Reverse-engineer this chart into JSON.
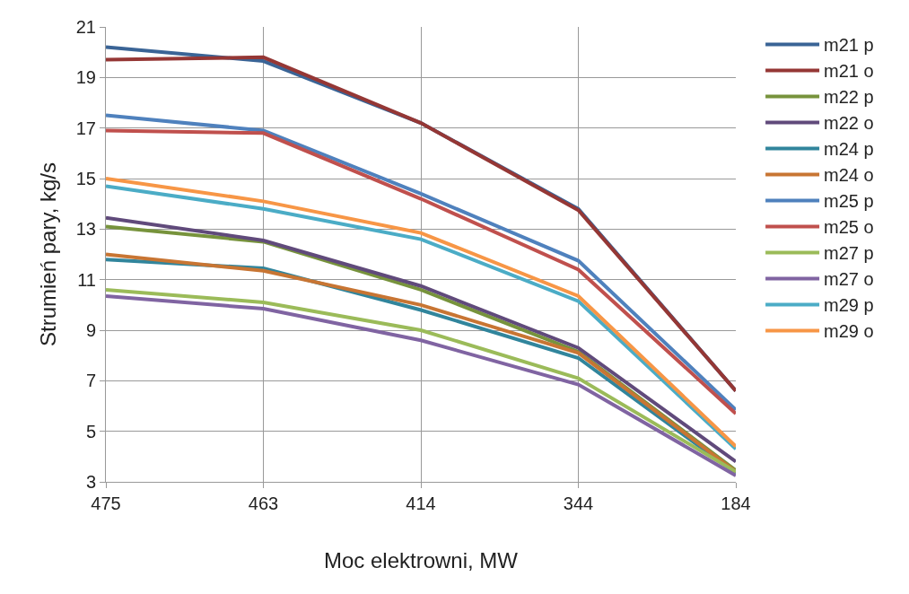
{
  "chart_data": {
    "type": "line",
    "xlabel": "Moc elektrowni, MW",
    "ylabel": "Strumień pary, kg/s",
    "categories": [
      "475",
      "463",
      "414",
      "344",
      "184"
    ],
    "ylim": [
      3,
      21
    ],
    "yticks": [
      3,
      5,
      7,
      9,
      11,
      13,
      15,
      17,
      19,
      21
    ],
    "grid": true,
    "legend": "right",
    "marker": "none",
    "line_style": "solid",
    "series": [
      {
        "name": "m21 p",
        "color": "#3a6496",
        "values": [
          20.2,
          19.65,
          17.2,
          13.8,
          6.6
        ]
      },
      {
        "name": "m21 o",
        "color": "#953735",
        "values": [
          19.7,
          19.8,
          17.2,
          13.75,
          6.6
        ]
      },
      {
        "name": "m22 p",
        "color": "#77933c",
        "values": [
          13.1,
          12.5,
          10.6,
          8.15,
          3.45
        ]
      },
      {
        "name": "m22 o",
        "color": "#604a7b",
        "values": [
          13.45,
          12.55,
          10.75,
          8.3,
          3.8
        ]
      },
      {
        "name": "m24 p",
        "color": "#31859c",
        "values": [
          11.8,
          11.45,
          9.8,
          7.9,
          3.35
        ]
      },
      {
        "name": "m24 o",
        "color": "#c87533",
        "values": [
          12.0,
          11.35,
          10.0,
          8.1,
          3.4
        ]
      },
      {
        "name": "m25 p",
        "color": "#4f81bd",
        "values": [
          17.5,
          16.9,
          14.4,
          11.75,
          5.85
        ]
      },
      {
        "name": "m25 o",
        "color": "#c0504d",
        "values": [
          16.9,
          16.8,
          14.2,
          11.4,
          5.7
        ]
      },
      {
        "name": "m27 p",
        "color": "#9bbb59",
        "values": [
          10.6,
          10.1,
          9.0,
          7.1,
          3.4
        ]
      },
      {
        "name": "m27 o",
        "color": "#8064a2",
        "values": [
          10.35,
          9.85,
          8.6,
          6.85,
          3.25
        ]
      },
      {
        "name": "m29 p",
        "color": "#4bacc6",
        "values": [
          14.7,
          13.8,
          12.6,
          10.15,
          4.3
        ]
      },
      {
        "name": "m29 o",
        "color": "#f79646",
        "values": [
          15.0,
          14.1,
          12.85,
          10.35,
          4.4
        ]
      }
    ]
  }
}
